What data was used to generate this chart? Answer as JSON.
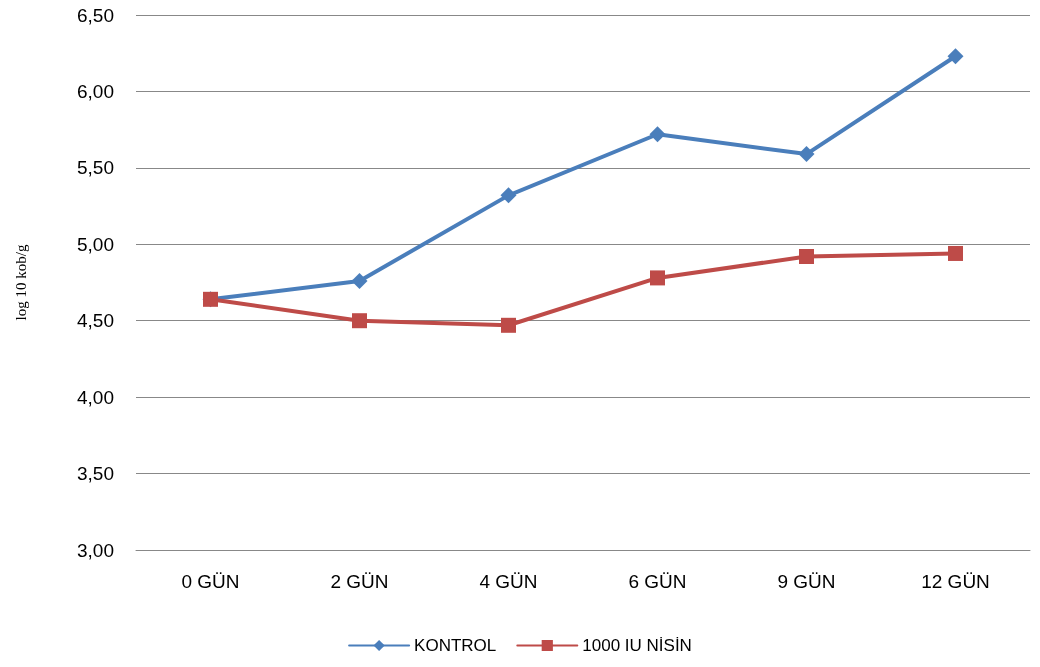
{
  "chart_data": {
    "type": "line",
    "ylabel": "log 10 kob/g",
    "categories": [
      "0 GÜN",
      "2 GÜN",
      "4 GÜN",
      "6 GÜN",
      "9 GÜN",
      "12 GÜN"
    ],
    "series": [
      {
        "name": "KONTROL",
        "color": "#4a7ebb",
        "marker": "diamond",
        "values": [
          4.64,
          4.76,
          5.32,
          5.72,
          5.59,
          6.23
        ]
      },
      {
        "name": "1000 IU NİSİN",
        "color": "#be4b48",
        "marker": "square",
        "values": [
          4.64,
          4.5,
          4.47,
          4.78,
          4.92,
          4.94
        ]
      }
    ],
    "ylim": [
      3,
      6.5
    ],
    "yticks": [
      {
        "value": 3,
        "label": "3,00"
      },
      {
        "value": 3.5,
        "label": "3,50"
      },
      {
        "value": 4,
        "label": "4,00"
      },
      {
        "value": 4.5,
        "label": "4,50"
      },
      {
        "value": 5,
        "label": "5,00"
      },
      {
        "value": 5.5,
        "label": "5,50"
      },
      {
        "value": 6,
        "label": "6,00"
      },
      {
        "value": 6.5,
        "label": "6,50"
      }
    ],
    "grid": "y",
    "legend": "bottom",
    "line_style": "solid"
  }
}
